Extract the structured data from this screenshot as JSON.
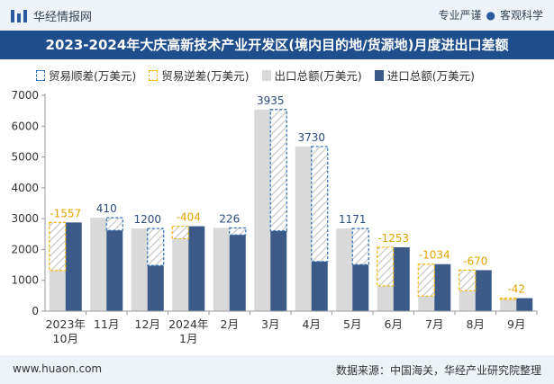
{
  "header": {
    "brand": "华经情报网",
    "tag1": "专业严谨",
    "tag2": "客观科学"
  },
  "chart_data": {
    "type": "bar",
    "title": "2023-2024年大庆高新技术产业开发区(境内目的地/货源地)月度进出口差额",
    "legend": {
      "surplus": "贸易顺差(万美元)",
      "deficit": "贸易逆差(万美元)",
      "export": "出口总额(万美元)",
      "import": "进口总额(万美元)"
    },
    "categories": [
      [
        "2023年",
        "10月"
      ],
      [
        "11月"
      ],
      [
        "12月"
      ],
      [
        "2024年",
        "1月"
      ],
      [
        "2月"
      ],
      [
        "3月"
      ],
      [
        "4月"
      ],
      [
        "5月"
      ],
      [
        "6月"
      ],
      [
        "7月"
      ],
      [
        "8月"
      ],
      [
        "9月"
      ]
    ],
    "series": [
      {
        "name": "出口总额(万美元)",
        "values": [
          1320,
          3030,
          2680,
          2350,
          2700,
          6540,
          5340,
          2680,
          820,
          490,
          660,
          380
        ]
      },
      {
        "name": "进口总额(万美元)",
        "values": [
          2877,
          2620,
          1480,
          2754,
          2474,
          2605,
          1610,
          1509,
          2073,
          1524,
          1330,
          422
        ]
      }
    ],
    "balance_labels": [
      "-1557",
      "410",
      "1200",
      "-404",
      "226",
      "3935",
      "3730",
      "1171",
      "-1253",
      "-1034",
      "-670",
      "-42"
    ],
    "ylim": [
      0,
      7000
    ],
    "yticks": [
      0,
      1000,
      2000,
      3000,
      4000,
      5000,
      6000,
      7000
    ],
    "colors": {
      "export": "#d9d9d9",
      "import": "#3c5a88",
      "surplus_border": "#2c6fb5",
      "deficit_border": "#f2b705",
      "surplus_label": "#2c4a7c",
      "deficit_label": "#e0a400"
    }
  },
  "footer": {
    "site": "www.huaon.com",
    "source": "数据来源：中国海关，华经产业研究院整理"
  }
}
